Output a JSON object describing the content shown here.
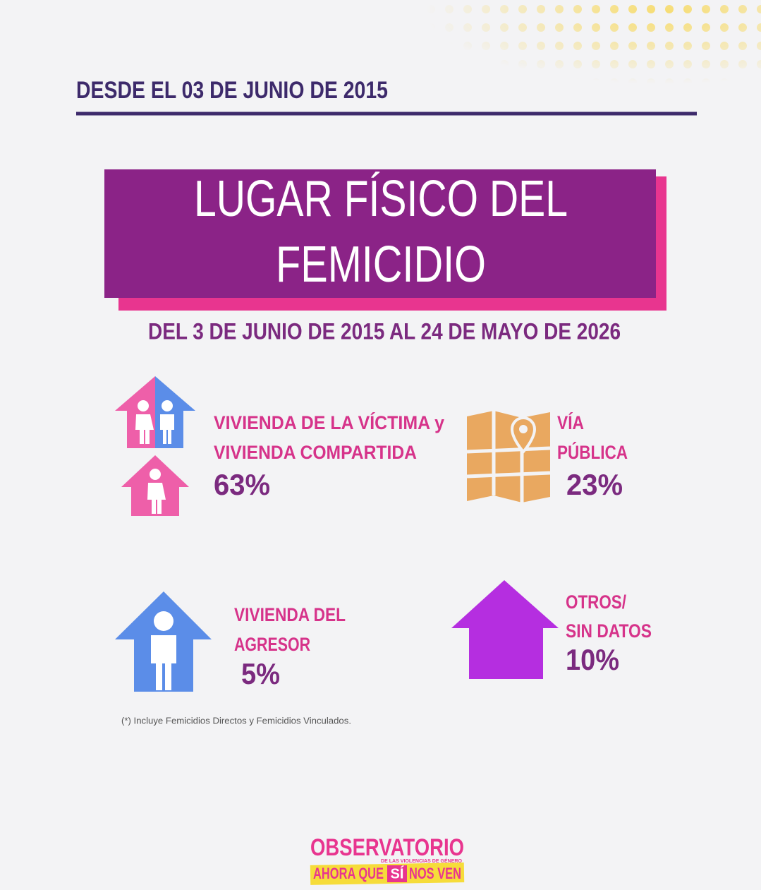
{
  "header": {
    "date_line": "DESDE EL 03 DE JUNIO DE 2015"
  },
  "title": {
    "lines": [
      "LUGAR FÍSICO DEL",
      "FEMICIDIO"
    ]
  },
  "subtitle": "DEL 3 DE JUNIO DE 2015 AL 24 DE MAYO DE 2026",
  "items": [
    {
      "label_lines": [
        "VIVIENDA DE LA VÍCTIMA y",
        "VIVIENDA COMPARTIDA"
      ],
      "value": "63%"
    },
    {
      "label_lines": [
        "VÍA",
        "PÚBLICA"
      ],
      "value": "23%"
    },
    {
      "label_lines": [
        "VIVIENDA DEL",
        "AGRESOR"
      ],
      "value": "5%"
    },
    {
      "label_lines": [
        "OTROS/",
        "SIN DATOS"
      ],
      "value": "10%"
    }
  ],
  "footnote": "(*) Incluye Femicidios Directos y Femicidios Vinculados.",
  "logo": {
    "name": "OBSERVATORIO",
    "tagline": "DE LAS VIOLENCIAS DE GÉNERO",
    "slogan": [
      "AHORA QUE",
      "SÍ",
      "NOS VEN"
    ]
  }
}
